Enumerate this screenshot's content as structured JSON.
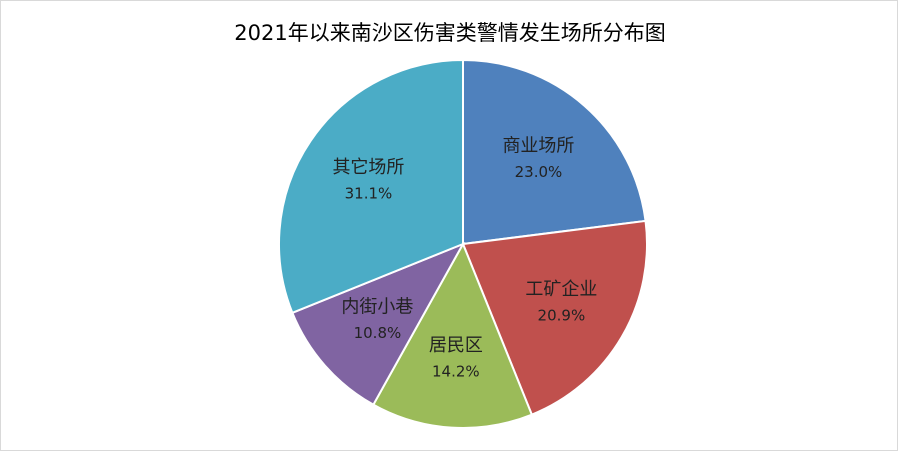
{
  "chart_data": {
    "type": "pie",
    "title": "2021年以来南沙区伤害类警情发生场所分布图",
    "categories": [
      "商业场所",
      "工矿企业",
      "居民区",
      "内街小巷",
      "其它场所"
    ],
    "values": [
      23.0,
      20.9,
      14.2,
      10.8,
      31.1
    ],
    "value_labels": [
      "23.0%",
      "20.9%",
      "14.2%",
      "10.8%",
      "31.1%"
    ],
    "colors": [
      "#4f81bd",
      "#c0504d",
      "#9bbb59",
      "#8064a2",
      "#4bacc6"
    ]
  }
}
